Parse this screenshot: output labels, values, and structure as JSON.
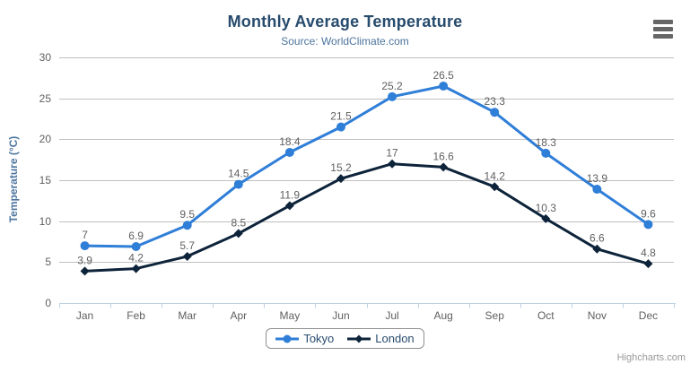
{
  "credits": "Highcharts.com",
  "context_menu_icon": "hamburger-icon",
  "colors": {
    "title": "#274b6d",
    "subtitle": "#4d759e",
    "axis_title": "#4d759e",
    "axis_labels": "#606060",
    "data_labels": "#606060",
    "grid_line": "#c0c0c0",
    "axis_line": "#c0d0e0",
    "legend_text": "#274b6d",
    "legend_border": "#909090",
    "credits": "#999999",
    "menu_icon": "#666666",
    "background": "#ffffff"
  },
  "chart_data": {
    "type": "line",
    "title": "Monthly Average Temperature",
    "subtitle": "Source: WorldClimate.com",
    "xlabel": "",
    "ylabel": "Temperature (°C)",
    "categories": [
      "Jan",
      "Feb",
      "Mar",
      "Apr",
      "May",
      "Jun",
      "Jul",
      "Aug",
      "Sep",
      "Oct",
      "Nov",
      "Dec"
    ],
    "series": [
      {
        "name": "Tokyo",
        "color": "#2f7ed8",
        "marker": "circle",
        "values": [
          7,
          6.9,
          9.5,
          14.5,
          18.4,
          21.5,
          25.2,
          26.5,
          23.3,
          18.3,
          13.9,
          9.6
        ]
      },
      {
        "name": "London",
        "color": "#0d233a",
        "marker": "diamond",
        "values": [
          3.9,
          4.2,
          5.7,
          8.5,
          11.9,
          15.2,
          17,
          16.6,
          14.2,
          10.3,
          6.6,
          4.8
        ]
      }
    ],
    "ylim": [
      0,
      30
    ],
    "y_tick_interval": 5,
    "grid": true,
    "data_labels": true,
    "legend_position": "bottom"
  }
}
